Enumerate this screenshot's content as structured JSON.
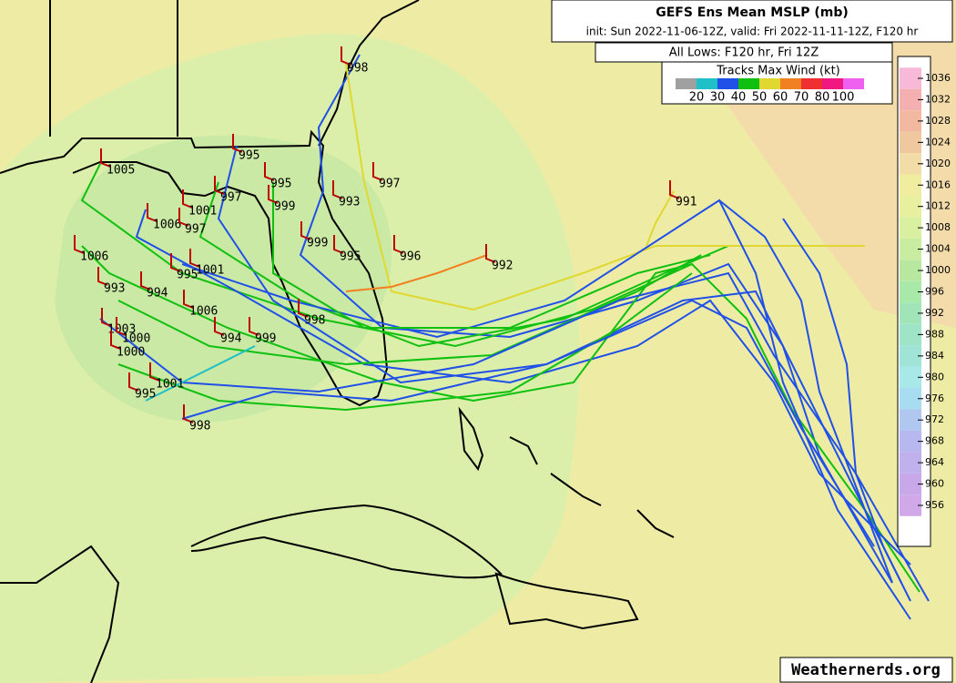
{
  "header": {
    "title": "GEFS Ens Mean MSLP (mb)",
    "init_line": "init: Sun 2022-11-06-12Z, valid: Fri 2022-11-11-12Z, F120 hr",
    "subtitle": "All Lows: F120 hr, Fri 12Z"
  },
  "wind_legend": {
    "title": "Tracks Max Wind (kt)",
    "labels": [
      20,
      30,
      40,
      50,
      60,
      70,
      80,
      100
    ],
    "colors": [
      "#a0a0a0",
      "#20c0c8",
      "#2050e8",
      "#10c010",
      "#e0d830",
      "#f08020",
      "#f03030",
      "#f01880",
      "#f060f0"
    ]
  },
  "colorbar": {
    "ticks": [
      1036,
      1032,
      1028,
      1024,
      1020,
      1016,
      1012,
      1008,
      1004,
      1000,
      996,
      992,
      988,
      984,
      980,
      976,
      972,
      968,
      964,
      960,
      956
    ],
    "colors": [
      "#f8b8d8",
      "#f4b0b0",
      "#f2b8a0",
      "#f0c8a0",
      "#f2dca8",
      "#f0eca0",
      "#e8f0a0",
      "#d8f0a0",
      "#c8eca0",
      "#b8e8a0",
      "#a8e8a8",
      "#a0e4b8",
      "#a0e4c8",
      "#a0e4d8",
      "#a8e8e8",
      "#a8dcf0",
      "#b0c8f0",
      "#b8b8f0",
      "#c0b0ec",
      "#c8a8e8",
      "#d0a8e8"
    ]
  },
  "lows": [
    998,
    1005,
    995,
    995,
    997,
    999,
    993,
    997,
    991,
    1001,
    1006,
    997,
    999,
    996,
    995,
    992,
    1006,
    995,
    1001,
    993,
    994,
    1006,
    998,
    1003,
    1000,
    1000,
    994,
    999,
    1001,
    995,
    998
  ],
  "watermark": "Weathernerds.org"
}
